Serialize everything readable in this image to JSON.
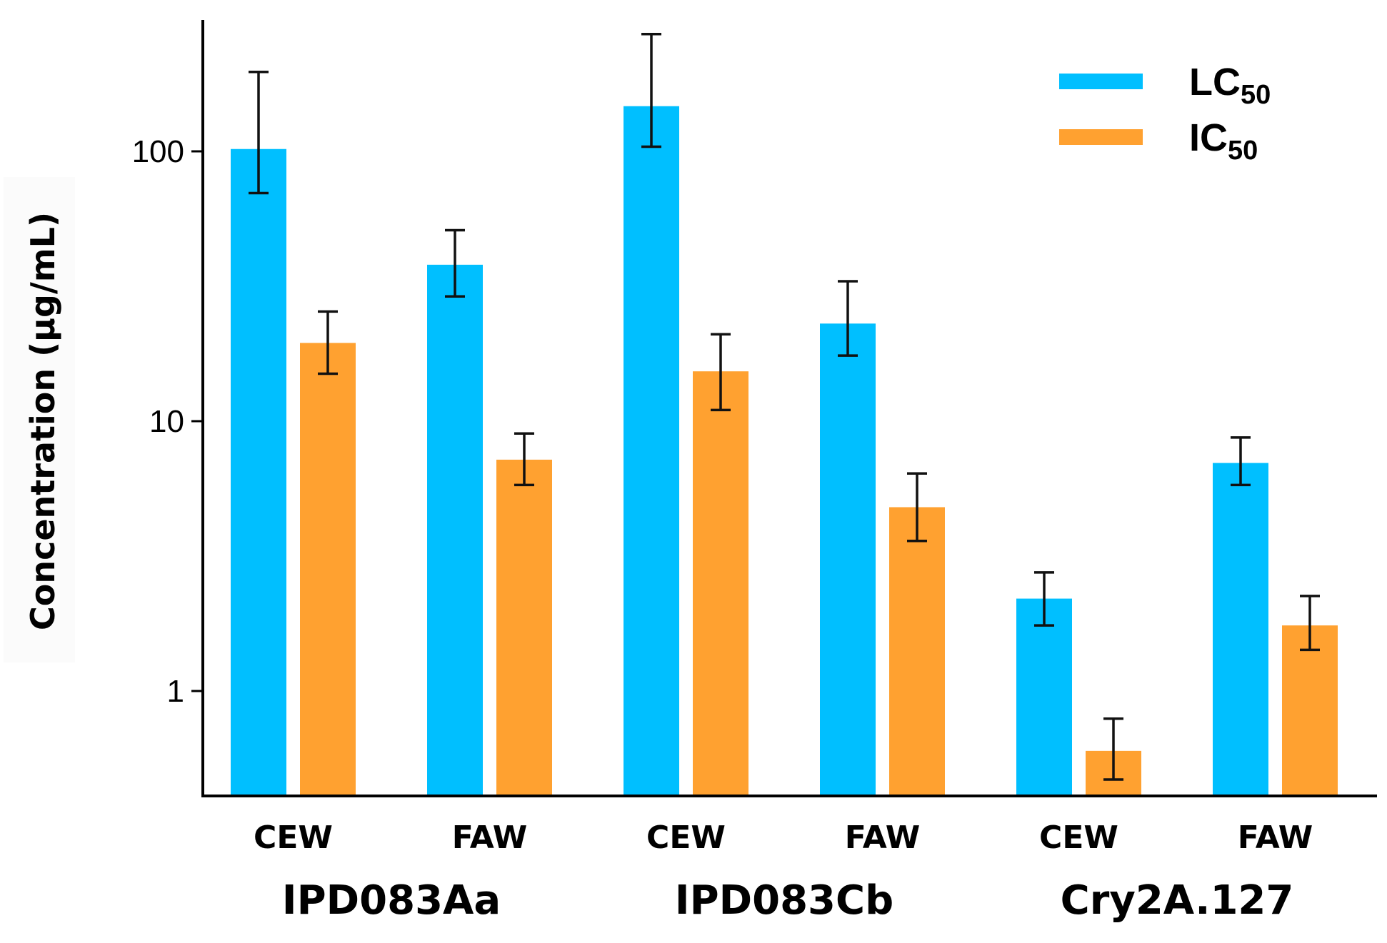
{
  "chart_data": {
    "type": "bar",
    "ylabel": "Concentration (µg/mL)",
    "yscale": "log",
    "ylim": [
      0.4,
      320
    ],
    "yticks": [
      {
        "value": 1,
        "label": "1"
      },
      {
        "value": 10,
        "label": "10"
      },
      {
        "value": 100,
        "label": "100"
      }
    ],
    "groups": [
      {
        "name": "IPD083Aa",
        "categories": [
          "CEW",
          "FAW"
        ]
      },
      {
        "name": "IPD083Cb",
        "categories": [
          "CEW",
          "FAW"
        ]
      },
      {
        "name": "Cry2A.127",
        "categories": [
          "CEW",
          "FAW"
        ]
      }
    ],
    "categories": [
      "CEW",
      "FAW",
      "CEW",
      "FAW",
      "CEW",
      "FAW"
    ],
    "series": [
      {
        "name": "LC50",
        "label_main": "LC",
        "label_sub": "50",
        "color": "#00BFFF",
        "values": [
          102,
          38,
          147,
          23,
          2.2,
          7.0
        ],
        "err_low": [
          70,
          29,
          104,
          17.5,
          1.75,
          5.8
        ],
        "err_high": [
          197,
          51,
          272,
          33,
          2.75,
          8.7
        ]
      },
      {
        "name": "IC50",
        "label_main": "IC",
        "label_sub": "50",
        "color": "#FFA130",
        "values": [
          19.5,
          7.2,
          15.3,
          4.8,
          0.6,
          1.75
        ],
        "err_low": [
          15,
          5.8,
          11,
          3.6,
          0.47,
          1.42
        ],
        "err_high": [
          25.5,
          9.0,
          21,
          6.4,
          0.79,
          2.25
        ]
      }
    ],
    "legend": "top-right"
  }
}
